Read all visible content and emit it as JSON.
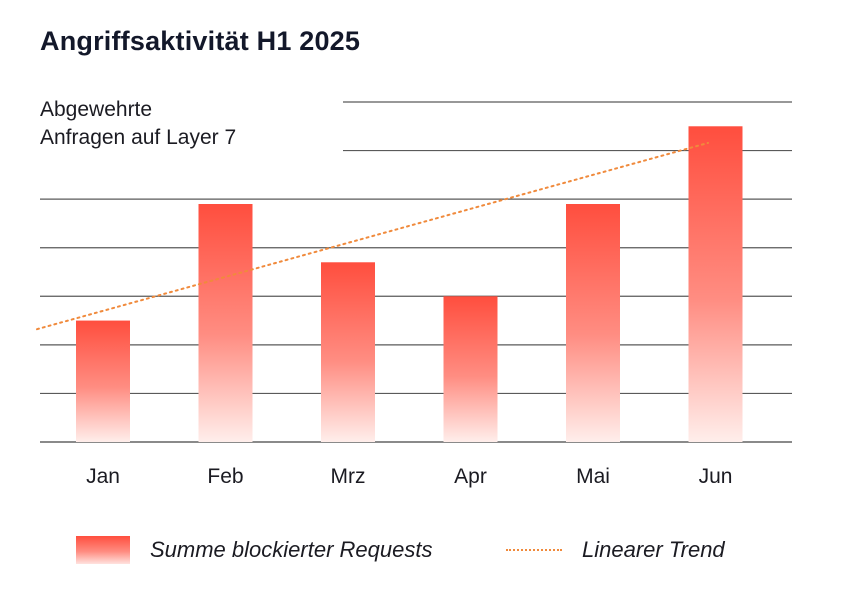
{
  "chart_data": {
    "type": "bar",
    "title": "Angriffsaktivität H1 2025",
    "ylabel_lines": [
      "Abgewehrte",
      "Anfragen auf Layer 7"
    ],
    "categories": [
      "Jan",
      "Feb",
      "Mrz",
      "Apr",
      "Mai",
      "Jun"
    ],
    "series": [
      {
        "name": "Summe blockierter Requests",
        "type": "bar",
        "values": [
          2.5,
          4.9,
          3.7,
          3.0,
          4.9,
          6.5
        ],
        "color": "#ff4e3e"
      },
      {
        "name": "Linearer Trend",
        "type": "line",
        "style": "dotted",
        "values": [
          2.7,
          3.4,
          4.1,
          4.8,
          5.5,
          6.2
        ],
        "color": "#f08a3c"
      }
    ],
    "ylim": [
      0,
      7
    ],
    "grid": true,
    "legend_position": "bottom"
  }
}
